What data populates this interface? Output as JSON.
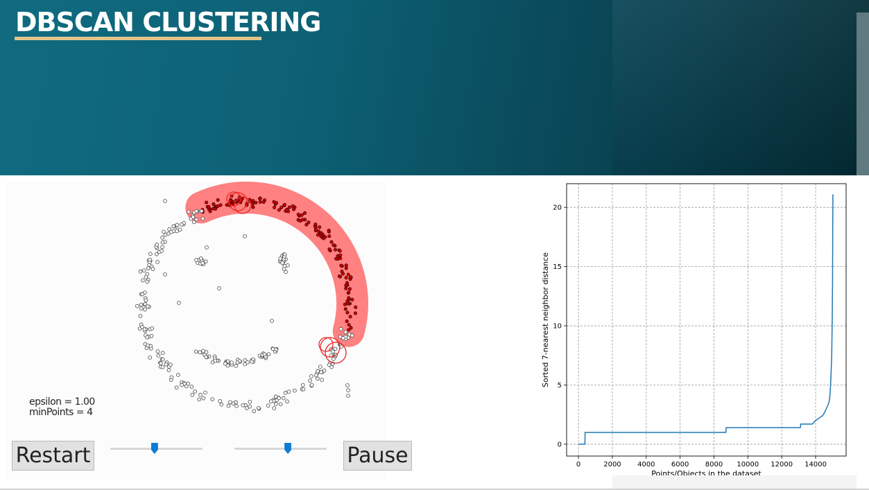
{
  "header": {
    "title": "DBSCAN CLUSTERING"
  },
  "animation": {
    "epsilon_label": "epsilon = 1.00",
    "minpoints_label": "minPoints = 4",
    "restart_label": "Restart",
    "pause_label": "Pause",
    "slider1_value": 0.48,
    "slider2_value": 0.58,
    "colors": {
      "cluster_halo": "#ff7a7a",
      "cluster_point": "#cc0000",
      "core_ring": "#ee2222",
      "noise_point": "#555555"
    }
  },
  "chart_data": {
    "type": "line",
    "title": "",
    "xlabel": "Points/Objects in the dataset",
    "ylabel": "Sorted 7-nearest neighbor distance",
    "xlim": [
      -700,
      15800
    ],
    "ylim": [
      -1.0,
      22.0
    ],
    "xticks": [
      0,
      2000,
      4000,
      6000,
      8000,
      10000,
      12000,
      14000
    ],
    "yticks": [
      0,
      5,
      10,
      15,
      20
    ],
    "grid": true,
    "line_color": "#1f77b4",
    "series": [
      {
        "x": [
          0,
          380,
          390,
          8700,
          8720,
          13100,
          13120,
          13800,
          14000,
          14200,
          14400,
          14500,
          14600,
          14700,
          14750,
          14800,
          14850,
          14900,
          14950,
          14980,
          15000,
          15010,
          15020
        ],
        "y": [
          0,
          0,
          1.0,
          1.0,
          1.4,
          1.4,
          1.7,
          1.7,
          2.0,
          2.2,
          2.4,
          2.6,
          2.9,
          3.2,
          3.4,
          3.6,
          4.2,
          5.5,
          7.5,
          10.5,
          14.0,
          18.0,
          21.1
        ]
      }
    ]
  }
}
